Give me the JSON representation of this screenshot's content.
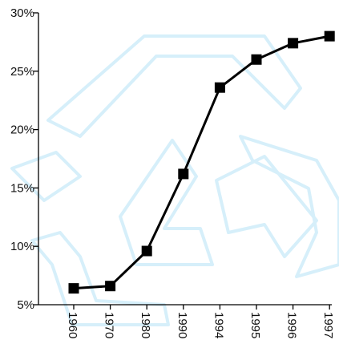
{
  "colors": {
    "line": "#000000",
    "marker": "#000000",
    "axis": "#000000",
    "watermark": "#d6effa"
  },
  "watermark_icon": "recycle-symbol",
  "chart_data": {
    "type": "line",
    "categories": [
      "1960",
      "1970",
      "1980",
      "1990",
      "1994",
      "1995",
      "1996",
      "1997"
    ],
    "series": [
      {
        "values": [
          6.4,
          6.6,
          9.6,
          16.2,
          23.6,
          26.0,
          27.4,
          28.0
        ]
      }
    ],
    "yticks": [
      "5%",
      "10%",
      "15%",
      "20%",
      "25%",
      "30%"
    ],
    "ylim": [
      5,
      30
    ],
    "grid": false,
    "legend": "none",
    "xlabel": "",
    "ylabel": "",
    "title": ""
  }
}
